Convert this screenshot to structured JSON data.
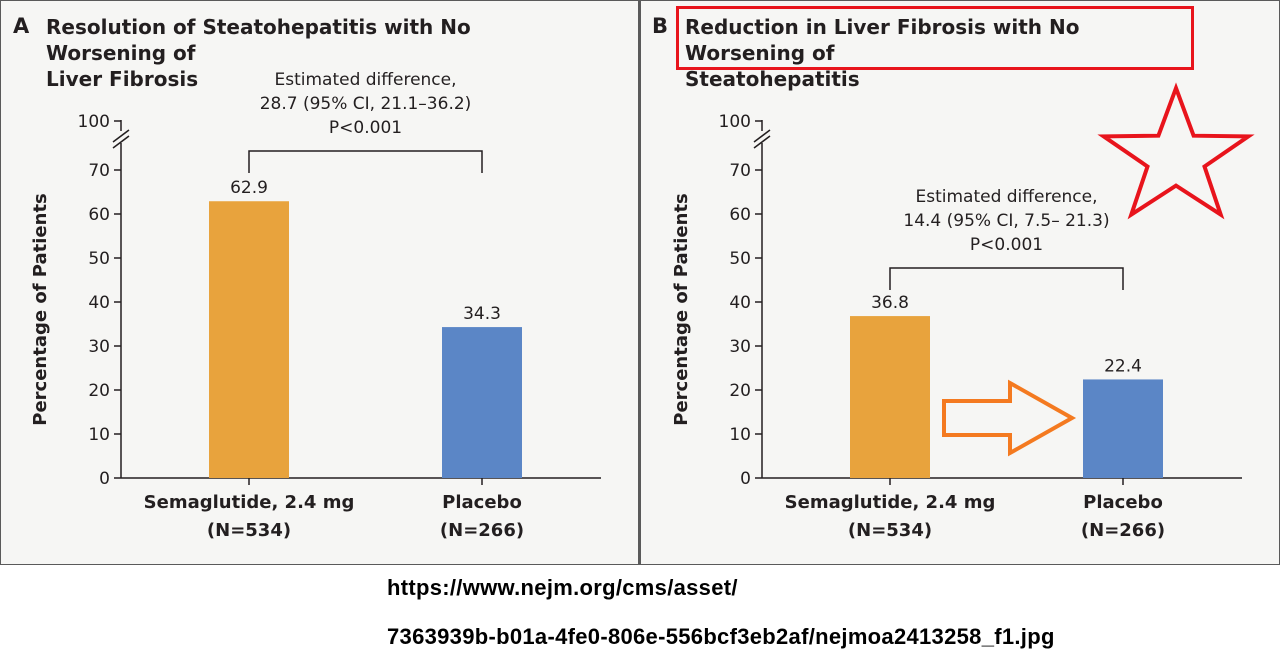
{
  "chart_data": [
    {
      "type": "bar",
      "panel_label": "A",
      "title": "Resolution of Steatohepatitis with No Worsening of Liver Fibrosis",
      "title_lines": [
        "Resolution of Steatohepatitis with No Worsening of",
        "Liver Fibrosis"
      ],
      "ylabel": "Percentage of Patients",
      "xlabel": "",
      "ylim": [
        0,
        100
      ],
      "y_ticks": [
        0,
        10,
        20,
        30,
        40,
        50,
        60,
        70,
        100
      ],
      "axis_break": "between 70 and 100",
      "categories": [
        "Semaglutide, 2.4 mg",
        "Placebo"
      ],
      "category_n": [
        "(N=534)",
        "(N=266)"
      ],
      "values": [
        62.9,
        34.3
      ],
      "value_labels": [
        "62.9",
        "34.3"
      ],
      "bar_colors": [
        "#e8a33d",
        "#5b86c6"
      ],
      "annotation": [
        "Estimated difference,",
        "28.7 (95% CI, 21.1–36.2)",
        "P<0.001"
      ],
      "grid": false
    },
    {
      "type": "bar",
      "panel_label": "B",
      "title": "Reduction in Liver Fibrosis with No Worsening of Steatohepatitis",
      "title_lines": [
        "Reduction in Liver Fibrosis with No Worsening of",
        "Steatohepatitis"
      ],
      "ylabel": "Percentage of Patients",
      "xlabel": "",
      "ylim": [
        0,
        100
      ],
      "y_ticks": [
        0,
        10,
        20,
        30,
        40,
        50,
        60,
        70,
        100
      ],
      "axis_break": "between 70 and 100",
      "categories": [
        "Semaglutide, 2.4 mg",
        "Placebo"
      ],
      "category_n": [
        "(N=534)",
        "(N=266)"
      ],
      "values": [
        36.8,
        22.4
      ],
      "value_labels": [
        "36.8",
        "22.4"
      ],
      "bar_colors": [
        "#e8a33d",
        "#5b86c6"
      ],
      "annotation": [
        "Estimated difference,",
        "14.4 (95% CI, 7.5– 21.3)",
        "P<0.001"
      ],
      "grid": false,
      "overlays": {
        "title_box_color": "#e8141c",
        "star_color": "#e8141c",
        "arrow_color": "#f47a20",
        "arrow_direction": "right"
      }
    }
  ],
  "source_url": {
    "line1": "https://www.nejm.org/cms/asset/",
    "line2": "7363939b-b01a-4fe0-806e-556bcf3eb2af/nejmoa2413258_f1.jpg"
  }
}
